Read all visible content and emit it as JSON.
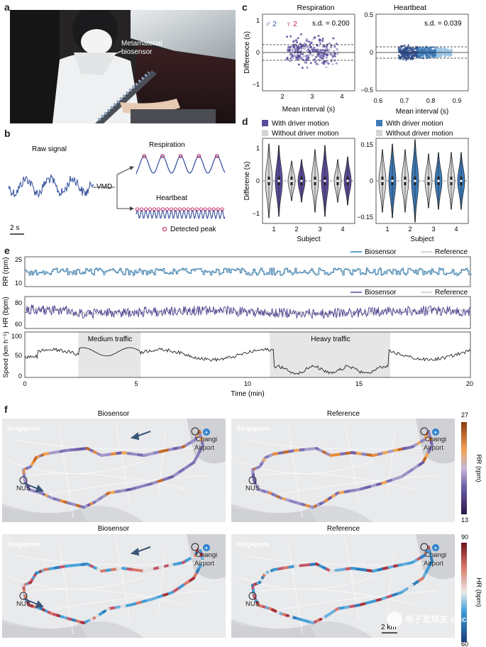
{
  "panel_labels": {
    "a": "a",
    "b": "b",
    "c": "c",
    "d": "d",
    "e": "e",
    "f": "f"
  },
  "panel_a": {
    "annotation": "Metamaterial\nbiosensor",
    "annotation_l1": "Metamaterial",
    "annotation_l2": "biosensor"
  },
  "panel_b": {
    "raw": "Raw signal",
    "vmd": "VMD",
    "resp": "Respiration",
    "heart": "Heartbeat",
    "scale": "2 s",
    "legend": "Detected peak"
  },
  "colors": {
    "purple": "#5b4a99",
    "blue": "#3d7ab8",
    "gray": "#bdbdbd",
    "map_bg": "#d9dadc",
    "route_purple": "#8c82c0",
    "route_orange": "#e98c3b",
    "route_blue": "#3f9ad4",
    "route_red": "#a8323c"
  },
  "chart_data": [
    {
      "type": "scatter",
      "title": "Respiration",
      "xlabel": "Mean interval (s)",
      "ylabel": "Difference (s)",
      "xlim": [
        1.5,
        4.5
      ],
      "ylim": [
        -1,
        1
      ],
      "xticks": [
        "2",
        "3",
        "4"
      ],
      "yticks": [
        "1",
        "0",
        "−1"
      ],
      "legend": {
        "male": "♂ 2",
        "female": "♀ 2"
      },
      "sd_label": "s.d. = 0.200",
      "sd": 0.2,
      "limits": [
        0.39,
        -0.39
      ]
    },
    {
      "type": "scatter",
      "title": "Heartbeat",
      "xlabel": "Mean interval (s)",
      "xlim": [
        0.6,
        0.95
      ],
      "ylim": [
        -0.5,
        0.5
      ],
      "xticks": [
        "0.6",
        "0.7",
        "0.8",
        "0.9"
      ],
      "yticks": [
        "0.5",
        "0",
        "−0.5"
      ],
      "sd_label": "s.d. = 0.039",
      "sd": 0.039,
      "limits": [
        0.076,
        -0.076
      ]
    },
    {
      "type": "violin",
      "ylabel": "Differene (s)",
      "xlabel": "Subject",
      "categories": [
        "1",
        "2",
        "3",
        "4"
      ],
      "legend": [
        "With driver motion",
        "Without driver motion"
      ],
      "ylim": [
        -1.4,
        1.4
      ],
      "yticks": [
        "1",
        "0",
        "−1"
      ]
    },
    {
      "type": "violin",
      "xlabel": "Subject",
      "categories": [
        "1",
        "2",
        "3",
        "4"
      ],
      "legend": [
        "With driver motion",
        "Without driver motion"
      ],
      "ylim": [
        -0.17,
        0.17
      ],
      "yticks": [
        "0.15",
        "0",
        "−0.15"
      ]
    },
    {
      "type": "line",
      "ylabel": "RR (rpm)",
      "ylim": [
        8,
        27
      ],
      "yticks": [
        "25",
        "10"
      ],
      "series": [
        {
          "name": "Biosensor"
        },
        {
          "name": "Reference"
        }
      ]
    },
    {
      "type": "line",
      "ylabel": "HR (bpm)",
      "ylim": [
        55,
        85
      ],
      "yticks": [
        "80",
        "60"
      ],
      "series": [
        {
          "name": "Biosensor"
        },
        {
          "name": "Reference"
        }
      ]
    },
    {
      "type": "line",
      "ylabel": "Speed (km h⁻¹)",
      "xlabel": "Time (min)",
      "ylim": [
        0,
        110
      ],
      "yticks": [
        "100",
        "50",
        "0"
      ],
      "xlim": [
        0,
        20
      ],
      "xticks": [
        "0",
        "5",
        "10",
        "15",
        "20"
      ],
      "annotations": [
        {
          "text": "Medium traffic",
          "from": 2.4,
          "to": 5.2
        },
        {
          "text": "Heavy traffic",
          "from": 11.0,
          "to": 16.4
        }
      ]
    }
  ],
  "panel_f": {
    "titles": [
      "Biosensor",
      "Reference",
      "Biosensor",
      "Reference"
    ],
    "singapore": "Singapore",
    "nus": "NUS",
    "changi1": "Changi",
    "changi2": "Airport",
    "scalebar": "2 km",
    "rr_cbar": {
      "label": "RR (rpm)",
      "max": "27",
      "min": "13"
    },
    "hr_cbar": {
      "label": "HR (bpm)",
      "max": "90",
      "min": "60"
    }
  },
  "watermark": "电子发烧友 elecfans.com"
}
